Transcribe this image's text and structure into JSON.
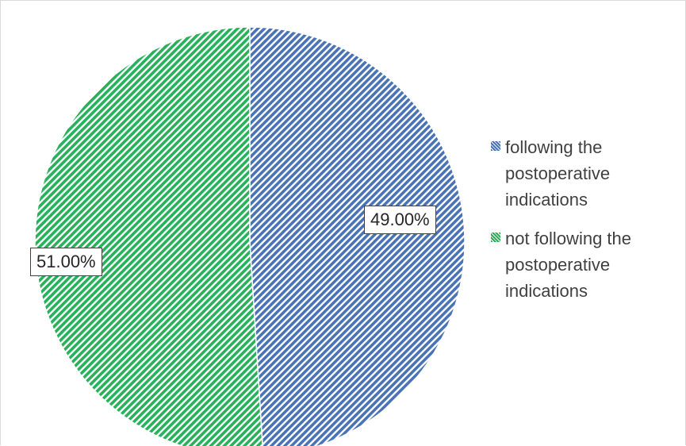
{
  "chart_data": {
    "type": "pie",
    "categories": [
      "following the postoperative indications",
      "not following the postoperative indications"
    ],
    "values": [
      49.0,
      51.0
    ],
    "data_labels": [
      "49.00%",
      "51.00%"
    ],
    "legend": {
      "position": "right",
      "entries": [
        {
          "lines": [
            "following the",
            "postoperative",
            "indications"
          ],
          "color": "#4a73b5"
        },
        {
          "lines": [
            "not following the",
            "postoperative",
            "indications"
          ],
          "color": "#27b15a"
        }
      ]
    },
    "fill": "diagonal-stripes",
    "start_angle_deg": 0,
    "direction": "clockwise"
  },
  "colors": {
    "series_1": "#4a73b5",
    "series_2": "#27b15a"
  }
}
